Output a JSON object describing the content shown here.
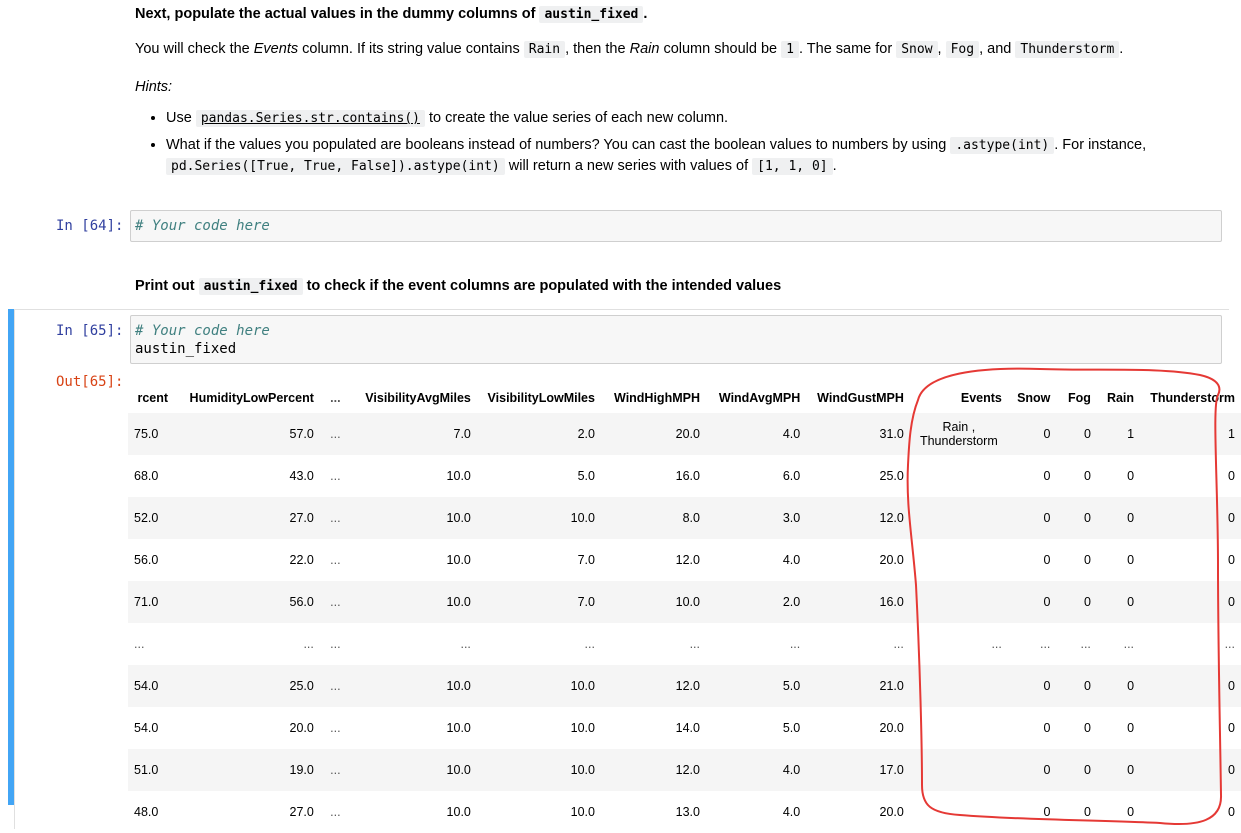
{
  "md1": {
    "heading_prefix": "Next, populate the actual values in the dummy columns of",
    "heading_code": "austin_fixed",
    "heading_suffix": ".",
    "p_1": "You will check the",
    "p_events": "Events",
    "p_2": "column. If its string value contains",
    "p_code_rain": "Rain",
    "p_3": ", then the",
    "p_rain_italic": "Rain",
    "p_4": "column should be",
    "p_code_one": "1",
    "p_5": ". The same for",
    "p_code_snow": "Snow",
    "p_6": ",",
    "p_code_fog": "Fog",
    "p_7": ", and",
    "p_code_thunder": "Thunderstorm",
    "p_8": ".",
    "hints": "Hints:",
    "bullet1_a": "Use",
    "bullet1_code": "pandas.Series.str.contains()",
    "bullet1_b": "to create the value series of each new column.",
    "bullet2_a": "What if the values you populated are booleans instead of numbers? You can cast the boolean values to numbers by using",
    "bullet2_code1": ".astype(int)",
    "bullet2_b": ". For instance,",
    "bullet2_code2": "pd.Series([True, True, False]).astype(int)",
    "bullet2_c": "will return a new series with values of",
    "bullet2_code3": "[1, 1, 0]",
    "bullet2_d": "."
  },
  "cell64": {
    "prompt": "In [64]:",
    "code": "# Your code here"
  },
  "md2": {
    "prefix": "Print out",
    "code": "austin_fixed",
    "suffix": "to check if the event columns are populated with the intended values"
  },
  "cell65": {
    "prompt": "In [65]:",
    "line1": "# Your code here",
    "line2": "austin_fixed",
    "out_prompt": "Out[65]:"
  },
  "table": {
    "columns": [
      "rcent",
      "HumidityLowPercent",
      "...",
      "VisibilityAvgMiles",
      "VisibilityLowMiles",
      "WindHighMPH",
      "WindAvgMPH",
      "WindGustMPH",
      "Events",
      "Snow",
      "Fog",
      "Rain",
      "Thunderstorm"
    ],
    "rows": [
      [
        "75.0",
        "57.0",
        "...",
        "7.0",
        "2.0",
        "20.0",
        "4.0",
        "31.0",
        "Rain , Thunderstorm",
        "0",
        "0",
        "1",
        "1"
      ],
      [
        "68.0",
        "43.0",
        "...",
        "10.0",
        "5.0",
        "16.0",
        "6.0",
        "25.0",
        "",
        "0",
        "0",
        "0",
        "0"
      ],
      [
        "52.0",
        "27.0",
        "...",
        "10.0",
        "10.0",
        "8.0",
        "3.0",
        "12.0",
        "",
        "0",
        "0",
        "0",
        "0"
      ],
      [
        "56.0",
        "22.0",
        "...",
        "10.0",
        "7.0",
        "12.0",
        "4.0",
        "20.0",
        "",
        "0",
        "0",
        "0",
        "0"
      ],
      [
        "71.0",
        "56.0",
        "...",
        "10.0",
        "7.0",
        "10.0",
        "2.0",
        "16.0",
        "",
        "0",
        "0",
        "0",
        "0"
      ],
      [
        "...",
        "...",
        "...",
        "...",
        "...",
        "...",
        "...",
        "...",
        "...",
        "...",
        "...",
        "...",
        "..."
      ],
      [
        "54.0",
        "25.0",
        "...",
        "10.0",
        "10.0",
        "12.0",
        "5.0",
        "21.0",
        "",
        "0",
        "0",
        "0",
        "0"
      ],
      [
        "54.0",
        "20.0",
        "...",
        "10.0",
        "10.0",
        "14.0",
        "5.0",
        "20.0",
        "",
        "0",
        "0",
        "0",
        "0"
      ],
      [
        "51.0",
        "19.0",
        "...",
        "10.0",
        "10.0",
        "12.0",
        "4.0",
        "17.0",
        "",
        "0",
        "0",
        "0",
        "0"
      ],
      [
        "48.0",
        "27.0",
        "...",
        "10.0",
        "10.0",
        "13.0",
        "4.0",
        "20.0",
        "",
        "0",
        "0",
        "0",
        "0"
      ]
    ]
  },
  "colors": {
    "annotation": "#e53935",
    "selected_bar": "#42a5f5",
    "in_prompt": "#303f9f",
    "out_prompt": "#d84315"
  }
}
